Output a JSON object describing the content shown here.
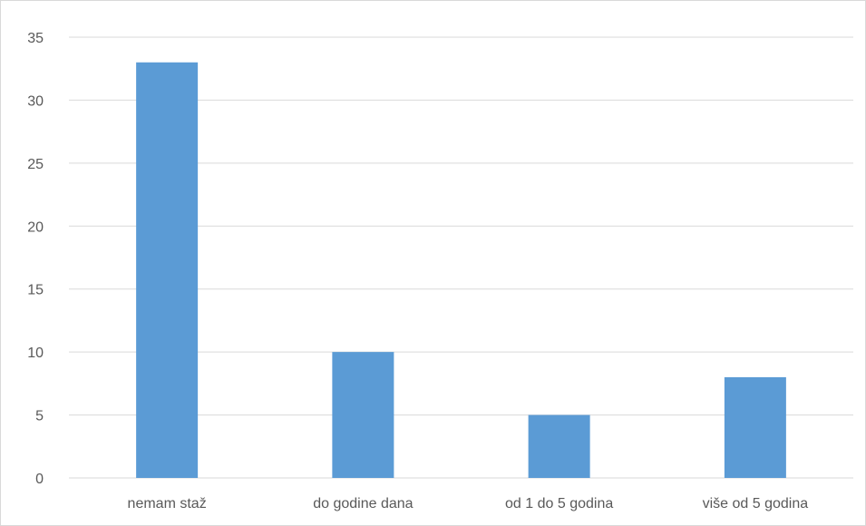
{
  "chart_data": {
    "type": "bar",
    "title": "",
    "xlabel": "",
    "ylabel": "",
    "categories": [
      "nemam staž",
      "do godine dana",
      "od 1 do 5 godina",
      "više od 5 godina"
    ],
    "values": [
      33,
      10,
      5,
      8
    ],
    "ylim": [
      0,
      35
    ],
    "yticks": [
      "0",
      "5",
      "10",
      "15",
      "20",
      "25",
      "30",
      "35"
    ],
    "grid": true,
    "legend": "none",
    "colors": {
      "bar": "#5b9bd5",
      "grid": "#d9d9d9",
      "text": "#595959"
    }
  }
}
